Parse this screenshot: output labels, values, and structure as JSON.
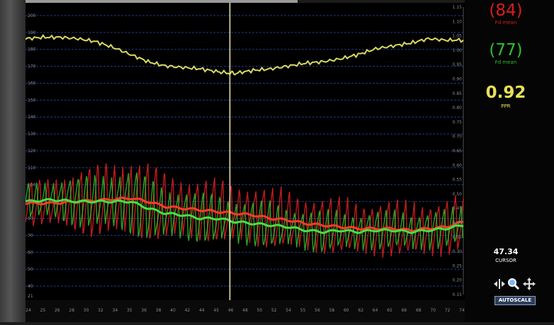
{
  "metrics": {
    "red": {
      "value": "(84)",
      "label": "Fd mean",
      "color": "#d91c1c"
    },
    "green": {
      "value": "(77)",
      "label": "Fd mean",
      "color": "#2fbf2f"
    },
    "ratio": {
      "value": "0.92",
      "label": "PPR",
      "color": "#e8e05a"
    },
    "cursor": {
      "value": "47.34",
      "label": "CURSOR",
      "color": "#ffffff"
    }
  },
  "controls": {
    "autoscale_label": "AUTOSCALE",
    "icons": [
      "split-arrows-icon",
      "zoom-icon",
      "move-icon"
    ]
  },
  "chart_data": {
    "type": "line",
    "grid": true,
    "cursor_x": 47.34,
    "x_ticks": [
      "24",
      "25",
      "26",
      "28",
      "30",
      "32",
      "34",
      "35",
      "36",
      "38",
      "40",
      "42",
      "44",
      "45",
      "46",
      "48",
      "50",
      "52",
      "54",
      "55",
      "56",
      "58",
      "60",
      "62",
      "64",
      "65",
      "66",
      "68",
      "70",
      "72",
      "74"
    ],
    "xlim": [
      24,
      74
    ],
    "left_axis": {
      "ticks": [
        40,
        50,
        60,
        70,
        80,
        90,
        100,
        110,
        120,
        130,
        140,
        150,
        160,
        170,
        180,
        190,
        200
      ],
      "extra_bottom_tick": "21",
      "ylim": [
        35,
        205
      ]
    },
    "right_axis": {
      "ticks": [
        "0.15",
        "0.20",
        "0.25",
        "0.30",
        "0.35",
        "0.40",
        "0.45",
        "0.50",
        "0.55",
        "0.60",
        "0.65",
        "0.70",
        "0.75",
        "0.80",
        "0.85",
        "0.90",
        "0.95",
        "1.00",
        "1.05",
        "1.10",
        "1.15"
      ],
      "ylim": [
        0.15,
        1.15
      ]
    },
    "series": [
      {
        "name": "Fd mean (red)",
        "color": "#e02020",
        "axis": "left",
        "mean_x": [
          24,
          27,
          30,
          33,
          36,
          38,
          40,
          42,
          44,
          46,
          48,
          50,
          52,
          54,
          56,
          58,
          60,
          62,
          64,
          66,
          68,
          70,
          72,
          74
        ],
        "mean_y": [
          89,
          89,
          90,
          91,
          92,
          90,
          87,
          86,
          85,
          84,
          83,
          82,
          80,
          79,
          77,
          76,
          75,
          74,
          74,
          74,
          73,
          74,
          75,
          78
        ],
        "osc_amp": [
          12,
          15,
          18,
          22,
          24,
          22,
          20,
          19,
          18,
          18,
          18,
          18,
          17,
          17,
          17,
          16,
          16,
          16,
          16,
          16,
          16,
          16,
          16,
          16
        ]
      },
      {
        "name": "Fd mean (green)",
        "color": "#2ec12e",
        "axis": "left",
        "mean_x": [
          24,
          27,
          30,
          33,
          36,
          38,
          40,
          42,
          44,
          46,
          48,
          50,
          52,
          54,
          56,
          58,
          60,
          62,
          64,
          66,
          68,
          70,
          72,
          74
        ],
        "mean_y": [
          90,
          91,
          90,
          90,
          90,
          86,
          83,
          82,
          80,
          80,
          78,
          77,
          76,
          75,
          73,
          72,
          73,
          72,
          73,
          73,
          72,
          73,
          74,
          76
        ],
        "osc_amp": [
          10,
          12,
          14,
          17,
          19,
          18,
          16,
          15,
          14,
          14,
          14,
          13,
          13,
          12,
          12,
          12,
          11,
          11,
          11,
          11,
          11,
          11,
          11,
          11
        ]
      },
      {
        "name": "PPR",
        "color": "#d8d860",
        "axis": "right",
        "x": [
          24,
          26,
          28,
          30,
          32,
          34,
          36,
          38,
          40,
          42,
          44,
          46,
          47.3,
          48,
          50,
          52,
          54,
          56,
          58,
          60,
          62,
          64,
          66,
          68,
          70,
          72,
          74
        ],
        "y": [
          1.04,
          1.045,
          1.045,
          1.04,
          1.03,
          1.01,
          0.985,
          0.96,
          0.945,
          0.94,
          0.935,
          0.925,
          0.92,
          0.92,
          0.93,
          0.935,
          0.945,
          0.955,
          0.96,
          0.97,
          0.985,
          1.005,
          1.015,
          1.025,
          1.04,
          1.035,
          1.035
        ]
      }
    ]
  }
}
